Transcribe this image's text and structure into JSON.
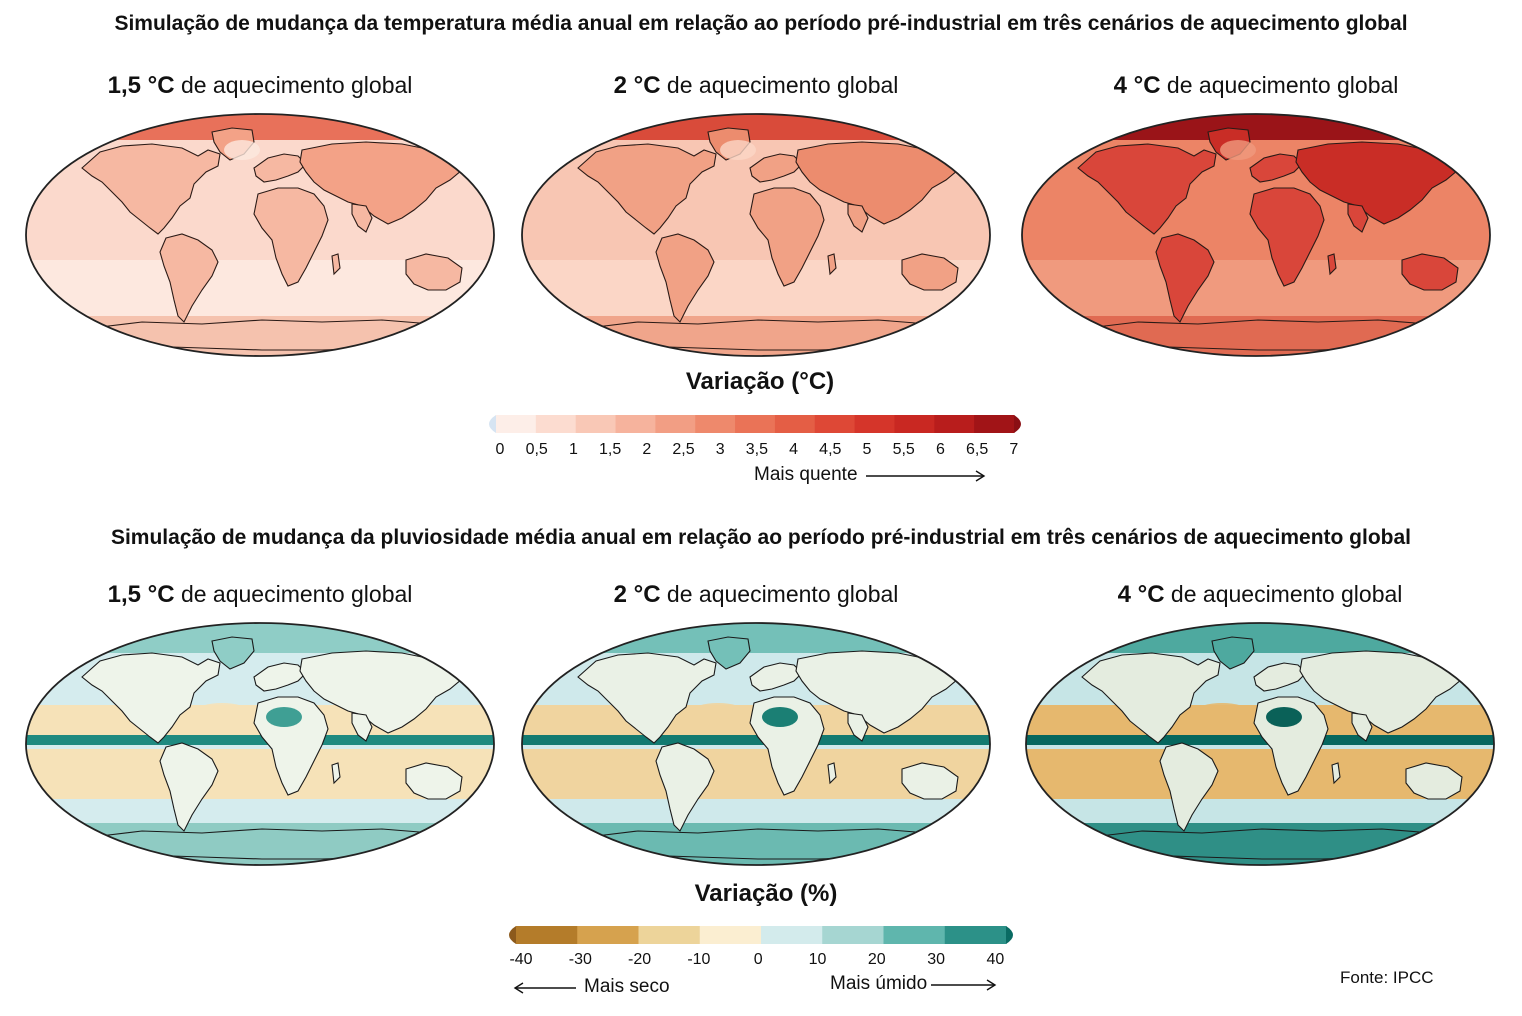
{
  "temperature": {
    "title": "Simulação de mudança da temperatura média anual em relação ao período pré-industrial em três cenários de aquecimento global",
    "panels": [
      {
        "bold": "1,5 °C",
        "rest": " de aquecimento global"
      },
      {
        "bold": "2 °C",
        "rest": " de aquecimento global"
      },
      {
        "bold": "4 °C",
        "rest": " de aquecimento global"
      }
    ],
    "legend": {
      "title": "Variação (°C)",
      "ticks": [
        "0",
        "0,5",
        "1",
        "1,5",
        "2",
        "2,5",
        "3",
        "3,5",
        "4",
        "4,5",
        "5",
        "5,5",
        "6",
        "6,5",
        "7"
      ],
      "direction_label": "Mais quente",
      "colors": [
        "#d6e4f2",
        "#fdeee8",
        "#fcdcd0",
        "#f9c8b6",
        "#f6b39d",
        "#f29e84",
        "#ee896c",
        "#ea7357",
        "#e45e45",
        "#de4836",
        "#d5352a",
        "#c92822",
        "#b81d1c",
        "#a11417",
        "#8a0f14"
      ]
    }
  },
  "precipitation": {
    "title": "Simulação de mudança da pluviosidade média anual em relação ao período pré-industrial em três cenários de aquecimento global",
    "panels": [
      {
        "bold": "1,5 °C",
        "rest": " de aquecimento global"
      },
      {
        "bold": "2 °C",
        "rest": " de aquecimento global"
      },
      {
        "bold": "4 °C",
        "rest": " de aquecimento global"
      }
    ],
    "legend": {
      "title": "Variação (%)",
      "ticks": [
        "-40",
        "-30",
        "-20",
        "-10",
        "0",
        "10",
        "20",
        "30",
        "40"
      ],
      "drier_label": "Mais seco",
      "wetter_label": "Mais úmido",
      "colors": [
        "#8c5a1c",
        "#b47c2a",
        "#d6a24e",
        "#edd49a",
        "#fbeed1",
        "#d3ebec",
        "#a6d6d2",
        "#5fb6ad",
        "#2c9188",
        "#0a6b63"
      ]
    }
  },
  "source": "Fonte: IPCC"
}
